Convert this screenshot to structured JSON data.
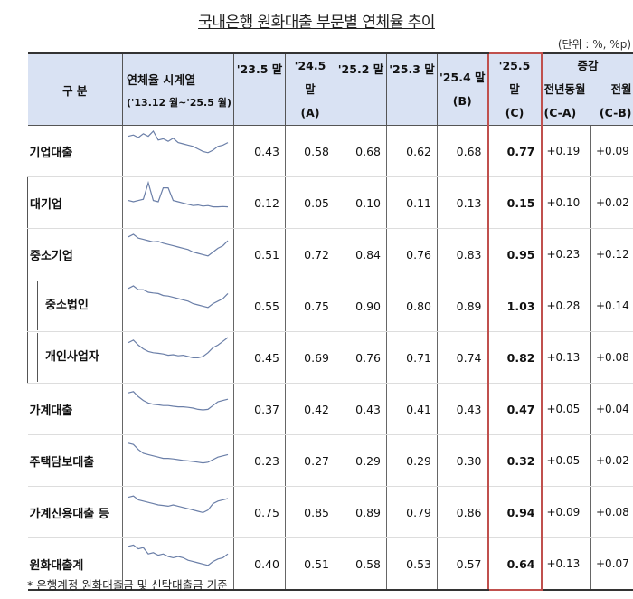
{
  "title": "국내은행 원화대출 부문별 연체율 추이",
  "unit": "(단위 : %, %p)",
  "headers": {
    "category": "구 분",
    "series": "연체율 시계열",
    "series_range": "('13.12 월~'25.5 월)",
    "c1": "'23.5 말",
    "c2a": "'24.5",
    "c2b": "말",
    "c2c": "(A)",
    "c3": "'25.2 말",
    "c4": "'25.3 말",
    "c5a": "'25.4 말",
    "c5b": "(B)",
    "c6a": "'25.5",
    "c6b": "말",
    "c6c": "(C)",
    "chg": "증감",
    "chg1": "전년동월",
    "chg2": "전월",
    "chg1b": "(C-A)",
    "chg2b": "(C-B)"
  },
  "rows": [
    {
      "name": "기업대출",
      "level": 0,
      "v": [
        "0.43",
        "0.58",
        "0.68",
        "0.62",
        "0.68",
        "0.77"
      ],
      "ca": "+0.19",
      "cb": "+0.09",
      "spark": [
        0.8,
        0.85,
        0.75,
        0.9,
        0.8,
        1.0,
        0.65,
        0.7,
        0.6,
        0.72,
        0.55,
        0.5,
        0.45,
        0.4,
        0.3,
        0.2,
        0.15,
        0.25,
        0.4,
        0.45,
        0.55
      ]
    },
    {
      "name": "대기업",
      "level": 1,
      "v": [
        "0.12",
        "0.05",
        "0.10",
        "0.11",
        "0.13",
        "0.15"
      ],
      "ca": "+0.10",
      "cb": "+0.02",
      "spark": [
        0.3,
        0.25,
        0.3,
        0.35,
        1.0,
        0.3,
        0.25,
        0.8,
        0.8,
        0.3,
        0.25,
        0.2,
        0.15,
        0.1,
        0.12,
        0.08,
        0.1,
        0.05,
        0.05,
        0.06,
        0.05
      ]
    },
    {
      "name": "중소기업",
      "level": 1,
      "v": [
        "0.51",
        "0.72",
        "0.84",
        "0.76",
        "0.83",
        "0.95"
      ],
      "ca": "+0.23",
      "cb": "+0.12",
      "spark": [
        0.9,
        1.0,
        0.85,
        0.8,
        0.75,
        0.7,
        0.72,
        0.65,
        0.6,
        0.55,
        0.5,
        0.45,
        0.4,
        0.3,
        0.25,
        0.2,
        0.15,
        0.3,
        0.45,
        0.55,
        0.75
      ]
    },
    {
      "name": "중소법인",
      "level": 2,
      "v": [
        "0.55",
        "0.75",
        "0.90",
        "0.80",
        "0.89",
        "1.03"
      ],
      "ca": "+0.28",
      "cb": "+0.14",
      "spark": [
        0.9,
        1.0,
        0.85,
        0.85,
        0.75,
        0.72,
        0.7,
        0.62,
        0.6,
        0.55,
        0.5,
        0.45,
        0.4,
        0.3,
        0.25,
        0.2,
        0.15,
        0.3,
        0.4,
        0.5,
        0.7
      ]
    },
    {
      "name": "개인사업자",
      "level": 2,
      "v": [
        "0.45",
        "0.69",
        "0.76",
        "0.71",
        "0.74",
        "0.82"
      ],
      "ca": "+0.13",
      "cb": "+0.08",
      "spark": [
        0.8,
        0.9,
        0.7,
        0.55,
        0.45,
        0.4,
        0.38,
        0.35,
        0.3,
        0.32,
        0.28,
        0.3,
        0.25,
        0.2,
        0.2,
        0.25,
        0.4,
        0.6,
        0.7,
        0.85,
        1.0
      ]
    },
    {
      "name": "가계대출",
      "level": 0,
      "v": [
        "0.37",
        "0.42",
        "0.43",
        "0.41",
        "0.43",
        "0.47"
      ],
      "ca": "+0.05",
      "cb": "+0.04",
      "spark": [
        0.85,
        0.9,
        0.7,
        0.55,
        0.45,
        0.4,
        0.38,
        0.35,
        0.35,
        0.32,
        0.3,
        0.3,
        0.28,
        0.25,
        0.2,
        0.18,
        0.2,
        0.35,
        0.5,
        0.55,
        0.6
      ]
    },
    {
      "name": "주택담보대출",
      "level": 0,
      "v": [
        "0.23",
        "0.27",
        "0.29",
        "0.29",
        "0.30",
        "0.32"
      ],
      "ca": "+0.05",
      "cb": "+0.02",
      "spark": [
        0.9,
        0.85,
        0.65,
        0.5,
        0.45,
        0.4,
        0.35,
        0.3,
        0.3,
        0.28,
        0.25,
        0.22,
        0.2,
        0.18,
        0.15,
        0.12,
        0.15,
        0.25,
        0.35,
        0.4,
        0.45
      ]
    },
    {
      "name": "가계신용대출 등",
      "level": 0,
      "v": [
        "0.75",
        "0.85",
        "0.89",
        "0.79",
        "0.86",
        "0.94"
      ],
      "ca": "+0.09",
      "cb": "+0.08",
      "spark": [
        0.8,
        0.85,
        0.7,
        0.65,
        0.6,
        0.55,
        0.5,
        0.48,
        0.45,
        0.5,
        0.45,
        0.4,
        0.35,
        0.3,
        0.25,
        0.2,
        0.3,
        0.55,
        0.65,
        0.7,
        0.75
      ]
    },
    {
      "name": "원화대출계",
      "level": 0,
      "v": [
        "0.40",
        "0.51",
        "0.58",
        "0.53",
        "0.57",
        "0.64"
      ],
      "ca": "+0.13",
      "cb": "+0.07",
      "spark": [
        0.9,
        0.95,
        0.8,
        0.85,
        0.6,
        0.65,
        0.55,
        0.6,
        0.5,
        0.45,
        0.5,
        0.45,
        0.35,
        0.3,
        0.25,
        0.2,
        0.15,
        0.3,
        0.4,
        0.45,
        0.6
      ]
    }
  ],
  "footnote": "* 은행계정 원화대출금 및 신탁대출금 기준",
  "colors": {
    "header_bg": "#d9e2f3",
    "highlight_border": "#c0504d",
    "sparkline": "#6b7fa8"
  }
}
